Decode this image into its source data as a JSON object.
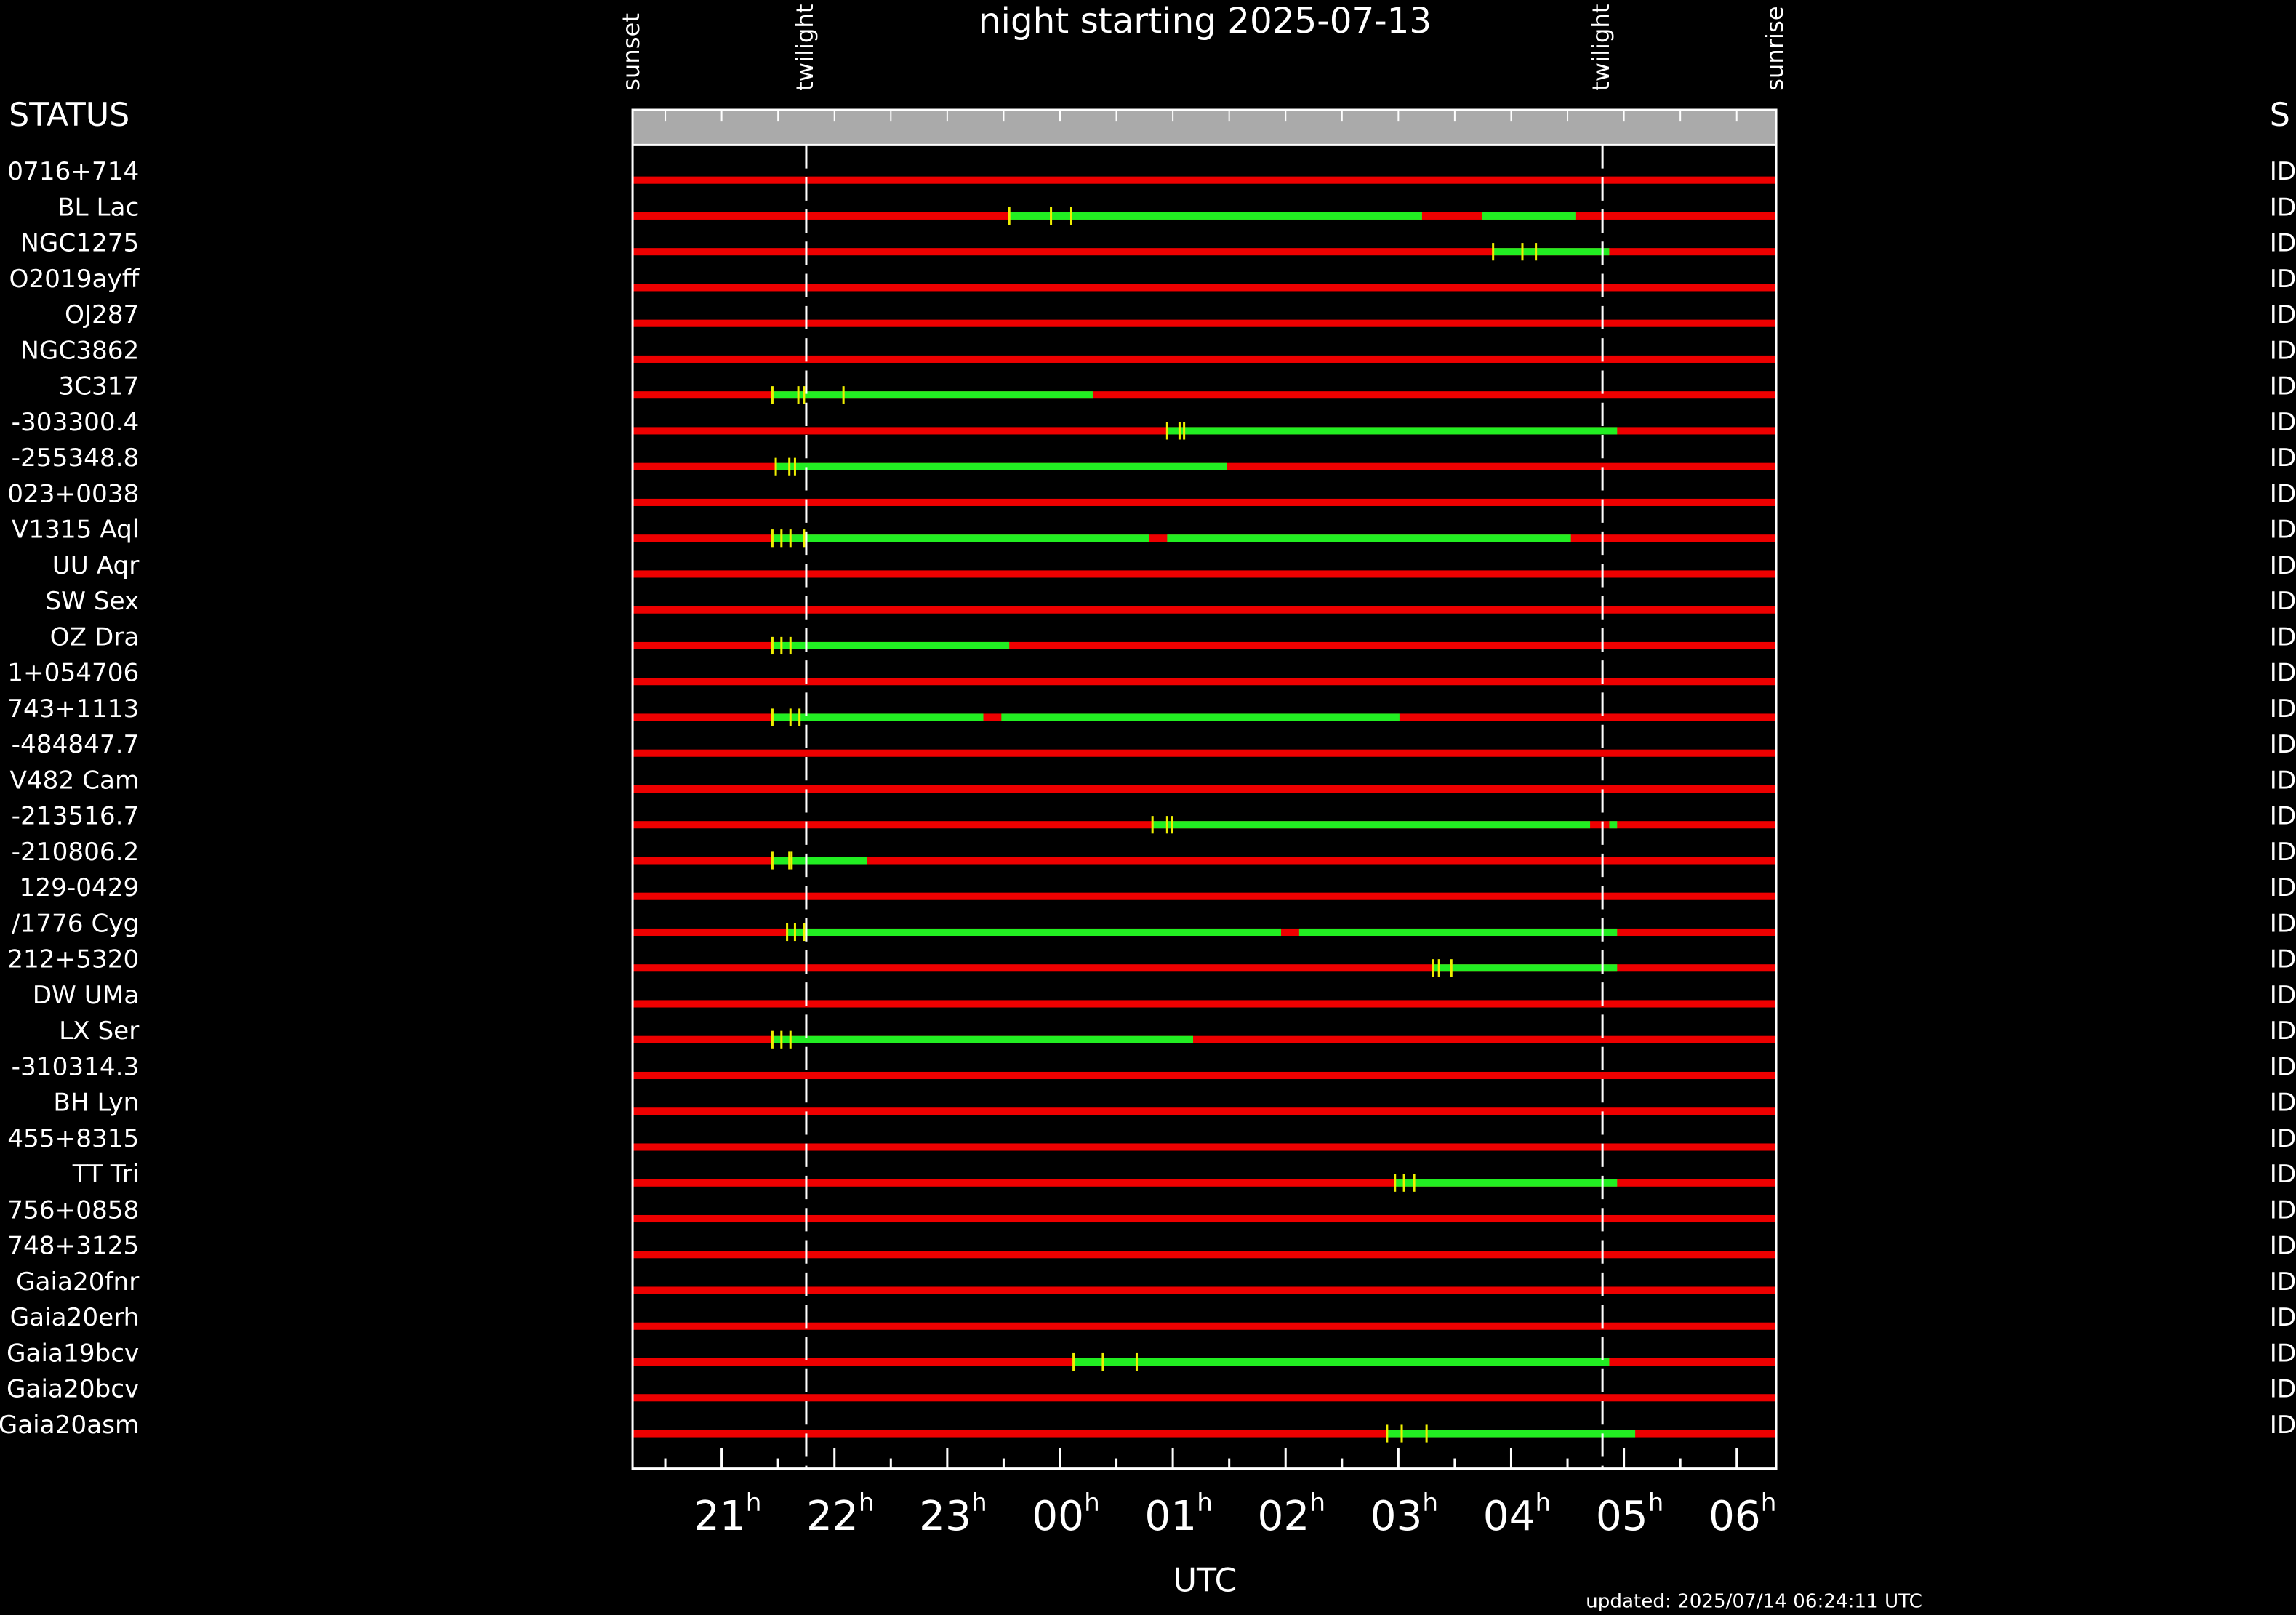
{
  "chart_data": {
    "type": "timeline",
    "title": "night starting 2025-07-13",
    "x_label": "UTC",
    "footer": "updated: 2025/07/14 06:24:11 UTC",
    "left_header": "STATUS",
    "right_header": "S",
    "xlim": [
      20.21,
      30.35
    ],
    "xticks": [
      {
        "value": 21,
        "label": "21",
        "sup": "h"
      },
      {
        "value": 22,
        "label": "22",
        "sup": "h"
      },
      {
        "value": 23,
        "label": "23",
        "sup": "h"
      },
      {
        "value": 24,
        "label": "00",
        "sup": "h"
      },
      {
        "value": 25,
        "label": "01",
        "sup": "h"
      },
      {
        "value": 26,
        "label": "02",
        "sup": "h"
      },
      {
        "value": 27,
        "label": "03",
        "sup": "h"
      },
      {
        "value": 28,
        "label": "04",
        "sup": "h"
      },
      {
        "value": 29,
        "label": "05",
        "sup": "h"
      },
      {
        "value": 30,
        "label": "06",
        "sup": "h"
      }
    ],
    "minor_xticks": [
      20.5,
      21.5,
      22.5,
      23.5,
      24.5,
      25.5,
      26.5,
      27.5,
      28.5,
      29.5
    ],
    "events": [
      {
        "label": "sunset",
        "value": 20.21
      },
      {
        "label": "twilight",
        "value": 21.75,
        "line": true
      },
      {
        "label": "twilight",
        "value": 28.81,
        "line": true
      },
      {
        "label": "sunrise",
        "value": 30.35
      }
    ],
    "colors": {
      "bad": "#ee0000",
      "good": "#22ee22",
      "marker": "#eeee00",
      "header": "#aaaaaa"
    },
    "rows": [
      {
        "name": "0716+714",
        "status": "ID",
        "good": [],
        "markers": []
      },
      {
        "name": "BL Lac",
        "status": "ID",
        "good": [
          [
            23.55,
            27.21
          ],
          [
            27.74,
            28.57
          ]
        ],
        "markers": [
          23.55,
          23.92,
          24.1
        ]
      },
      {
        "name": "NGC1275",
        "status": "ID",
        "good": [
          [
            27.84,
            28.87
          ]
        ],
        "markers": [
          27.84,
          28.1,
          28.22
        ]
      },
      {
        "name": "O2019ayff",
        "status": "ID",
        "good": [],
        "markers": []
      },
      {
        "name": "OJ287",
        "status": "ID",
        "good": [],
        "markers": []
      },
      {
        "name": "NGC3862",
        "status": "ID",
        "good": [],
        "markers": []
      },
      {
        "name": "3C317",
        "status": "ID",
        "good": [
          [
            21.45,
            24.29
          ]
        ],
        "markers": [
          21.45,
          21.68,
          21.73,
          22.08
        ]
      },
      {
        "name": "-303300.4",
        "status": "ID",
        "good": [
          [
            24.95,
            28.94
          ]
        ],
        "markers": [
          24.95,
          25.06,
          25.1
        ]
      },
      {
        "name": "-255348.8",
        "status": "ID",
        "good": [
          [
            21.48,
            25.48
          ]
        ],
        "markers": [
          21.48,
          21.6,
          21.65
        ]
      },
      {
        "name": "023+0038",
        "status": "ID",
        "good": [],
        "markers": []
      },
      {
        "name": "V1315 Aql",
        "status": "ID",
        "good": [
          [
            21.45,
            24.79
          ],
          [
            24.95,
            28.53
          ]
        ],
        "markers": [
          21.45,
          21.53,
          21.61,
          21.73
        ]
      },
      {
        "name": "UU Aqr",
        "status": "ID",
        "good": [],
        "markers": []
      },
      {
        "name": "SW Sex",
        "status": "ID",
        "good": [],
        "markers": []
      },
      {
        "name": "OZ Dra",
        "status": "ID",
        "good": [
          [
            21.45,
            23.55
          ]
        ],
        "markers": [
          21.45,
          21.53,
          21.61
        ]
      },
      {
        "name": "1+054706",
        "status": "ID",
        "good": [],
        "markers": []
      },
      {
        "name": "743+1113",
        "status": "ID",
        "good": [
          [
            21.45,
            23.32
          ],
          [
            23.48,
            27.01
          ]
        ],
        "markers": [
          21.45,
          21.61,
          21.69
        ]
      },
      {
        "name": "-484847.7",
        "status": "ID",
        "good": [],
        "markers": []
      },
      {
        "name": "V482 Cam",
        "status": "ID",
        "good": [],
        "markers": []
      },
      {
        "name": "-213516.7",
        "status": "ID",
        "good": [
          [
            24.82,
            28.7
          ],
          [
            28.87,
            28.94
          ]
        ],
        "markers": [
          24.82,
          24.95,
          24.99
        ]
      },
      {
        "name": "-210806.2",
        "status": "ID",
        "good": [
          [
            21.45,
            22.29
          ]
        ],
        "markers": [
          21.45,
          21.6,
          21.62
        ]
      },
      {
        "name": "129-0429",
        "status": "ID",
        "good": [],
        "markers": []
      },
      {
        "name": "/1776 Cyg",
        "status": "ID",
        "good": [
          [
            21.58,
            25.96
          ],
          [
            26.12,
            28.94
          ]
        ],
        "markers": [
          21.58,
          21.65,
          21.73
        ]
      },
      {
        "name": "212+5320",
        "status": "ID",
        "good": [
          [
            27.31,
            28.94
          ]
        ],
        "markers": [
          27.31,
          27.36,
          27.47
        ]
      },
      {
        "name": "DW UMa",
        "status": "ID",
        "good": [],
        "markers": []
      },
      {
        "name": "LX Ser",
        "status": "ID",
        "good": [
          [
            21.45,
            25.18
          ]
        ],
        "markers": [
          21.45,
          21.53,
          21.61
        ]
      },
      {
        "name": "-310314.3",
        "status": "ID",
        "good": [],
        "markers": []
      },
      {
        "name": "BH Lyn",
        "status": "ID",
        "good": [],
        "markers": []
      },
      {
        "name": "455+8315",
        "status": "ID",
        "good": [],
        "markers": []
      },
      {
        "name": "TT Tri",
        "status": "ID",
        "good": [
          [
            26.97,
            28.94
          ]
        ],
        "markers": [
          26.97,
          27.05,
          27.14
        ]
      },
      {
        "name": "756+0858",
        "status": "ID",
        "good": [],
        "markers": []
      },
      {
        "name": "748+3125",
        "status": "ID",
        "good": [],
        "markers": []
      },
      {
        "name": "Gaia20fnr",
        "status": "ID",
        "good": [],
        "markers": []
      },
      {
        "name": "Gaia20erh",
        "status": "ID",
        "good": [],
        "markers": []
      },
      {
        "name": "Gaia19bcv",
        "status": "ID",
        "good": [
          [
            24.12,
            28.87
          ]
        ],
        "markers": [
          24.12,
          24.38,
          24.68
        ]
      },
      {
        "name": "Gaia20bcv",
        "status": "ID",
        "good": [],
        "markers": []
      },
      {
        "name": "Gaia20asm",
        "status": "ID",
        "good": [
          [
            26.9,
            29.1
          ]
        ],
        "markers": [
          26.9,
          27.03,
          27.25
        ]
      }
    ]
  }
}
